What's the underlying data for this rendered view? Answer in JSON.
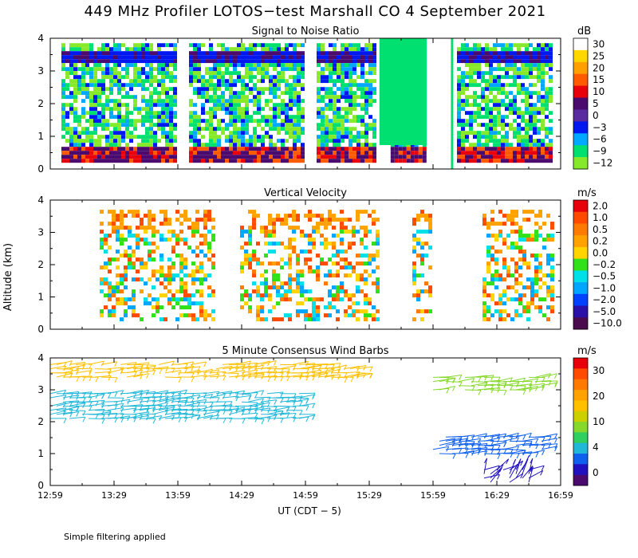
{
  "title": "449 MHz Profiler LOTOS−test Marshall CO  4 September 2021",
  "ylabel": "Altitude (km)",
  "xlabel": "UT  (CDT − 5)",
  "footnote": "Simple filtering applied",
  "chart_data": [
    {
      "type": "heatmap",
      "title": "Signal to Noise Ratio",
      "variable": "snr",
      "ylim": [
        0,
        4
      ],
      "yticks": [
        "0",
        "1",
        "2",
        "3",
        "4"
      ],
      "colorbar": {
        "unit": "dB",
        "labels": [
          "30",
          "25",
          "20",
          "15",
          "10",
          "5",
          "0",
          "−3",
          "−6",
          "−9",
          "−12"
        ],
        "colors": [
          "#ffffff",
          "#ffd700",
          "#ff9f00",
          "#ff5a00",
          "#e8000b",
          "#4b0a6e",
          "#5a2aa0",
          "#0018f0",
          "#00a8ff",
          "#00e070",
          "#86ea2a"
        ]
      },
      "segments_hours_ut": [
        [
          0.0,
          1.0
        ],
        [
          1.0,
          2.0
        ],
        [
          2.0,
          2.58
        ],
        [
          2.58,
          2.95
        ],
        [
          3.1,
          3.95
        ]
      ]
    },
    {
      "type": "heatmap",
      "title": "Vertical Velocity",
      "variable": "vertical_velocity",
      "ylim": [
        0,
        4
      ],
      "yticks": [
        "0",
        "1",
        "2",
        "3",
        "4"
      ],
      "colorbar": {
        "unit": "m/s",
        "labels": [
          "2.0",
          "1.0",
          "0.5",
          "0.2",
          "0.0",
          "−0.2",
          "−0.5",
          "−1.0",
          "−2.0",
          "−5.0",
          "−10.0"
        ],
        "colors": [
          "#e8000b",
          "#ff4a00",
          "#ff7a00",
          "#ffa200",
          "#ffd400",
          "#30e018",
          "#00e0e8",
          "#00a6ff",
          "#0040ff",
          "#2a10a8",
          "#4b0a4e"
        ]
      },
      "segments_hours_ut": [
        [
          0.3,
          1.3
        ],
        [
          1.4,
          2.6
        ],
        [
          2.75,
          3.0
        ],
        [
          3.3,
          3.95
        ]
      ]
    },
    {
      "type": "wind_barbs",
      "title": "5 Minute Consensus Wind Barbs",
      "variable": "horizontal_wind",
      "ylim": [
        0,
        4
      ],
      "yticks": [
        "0",
        "1",
        "2",
        "3",
        "4"
      ],
      "colorbar": {
        "unit": "m/s",
        "labels": [
          "30",
          "20",
          "10",
          "4",
          "0"
        ],
        "colors": [
          "#e8000b",
          "#ff4a00",
          "#ff7a00",
          "#ffa200",
          "#ffc000",
          "#ccd000",
          "#86d82a",
          "#30d060",
          "#20b8d8",
          "#1060f0",
          "#2010c0",
          "#4b0a6e"
        ]
      },
      "layers": [
        {
          "altitude_km": [
            3.4,
            3.8
          ],
          "speed_ms": 18,
          "time_hours_ut": [
            0.0,
            2.4
          ]
        },
        {
          "altitude_km": [
            3.0,
            3.45
          ],
          "speed_ms": 14,
          "time_hours_ut": [
            3.0,
            3.85
          ]
        },
        {
          "altitude_km": [
            2.1,
            2.9
          ],
          "speed_ms": 9,
          "time_hours_ut": [
            0.0,
            2.0
          ]
        },
        {
          "altitude_km": [
            1.0,
            1.6
          ],
          "speed_ms": 6,
          "time_hours_ut": [
            3.0,
            3.85
          ]
        },
        {
          "altitude_km": [
            0.1,
            0.6
          ],
          "speed_ms": 2,
          "time_hours_ut": [
            3.4,
            3.75
          ]
        }
      ]
    }
  ],
  "x_axis": {
    "ticks": [
      "12:59",
      "13:29",
      "13:59",
      "14:29",
      "14:59",
      "15:29",
      "15:59",
      "16:29",
      "16:59"
    ],
    "range_hours": [
      0,
      4
    ]
  }
}
